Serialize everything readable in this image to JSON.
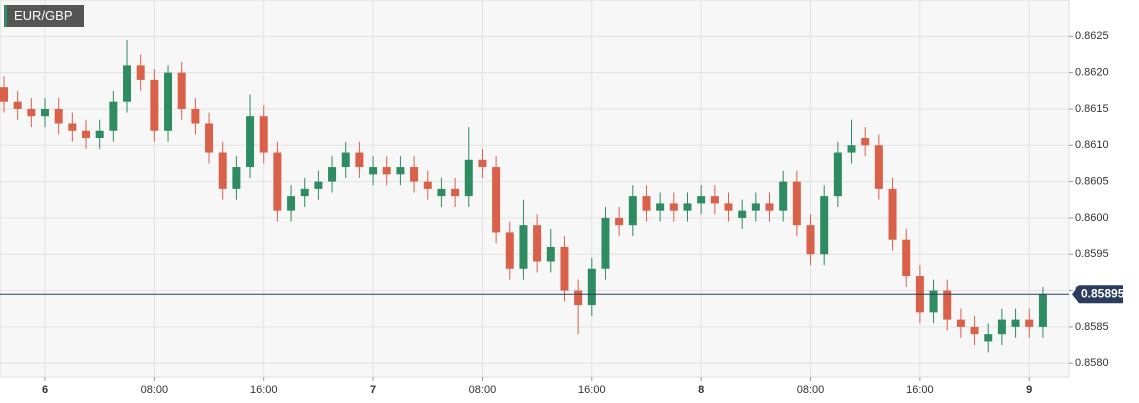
{
  "chart_data": {
    "type": "candlestick",
    "title": "EUR/GBP",
    "categories": [
      null,
      null,
      null,
      "6",
      null,
      null,
      null,
      null,
      null,
      null,
      null,
      "08:00",
      null,
      null,
      null,
      null,
      null,
      null,
      null,
      "16:00",
      null,
      null,
      null,
      null,
      null,
      null,
      null,
      "7",
      null,
      null,
      null,
      null,
      null,
      null,
      null,
      "08:00",
      null,
      null,
      null,
      null,
      null,
      null,
      null,
      "16:00",
      null,
      null,
      null,
      null,
      null,
      null,
      null,
      "8",
      null,
      null,
      null,
      null,
      null,
      null,
      null,
      "08:00",
      null,
      null,
      null,
      null,
      null,
      null,
      null,
      "16:00",
      null,
      null,
      null,
      null,
      null,
      null,
      null,
      "9",
      null
    ],
    "open": [
      0.8618,
      0.8616,
      0.8615,
      0.8614,
      0.8615,
      0.8613,
      0.8612,
      0.8611,
      0.8612,
      0.8616,
      0.8621,
      0.8619,
      0.8612,
      0.862,
      0.8615,
      0.8613,
      0.8609,
      0.8604,
      0.8607,
      0.8614,
      0.8609,
      0.8601,
      0.8603,
      0.8604,
      0.8605,
      0.8607,
      0.8609,
      0.8606,
      0.8607,
      0.8606,
      0.8607,
      0.8605,
      0.8603,
      0.8604,
      0.8603,
      0.8608,
      0.8607,
      0.8598,
      0.8593,
      0.8599,
      0.8594,
      0.8596,
      0.859,
      0.8588,
      0.8593,
      0.86,
      0.8599,
      0.8603,
      0.8601,
      0.8602,
      0.8601,
      0.8602,
      0.8603,
      0.8602,
      0.86,
      0.8601,
      0.8602,
      0.8601,
      0.8605,
      0.8599,
      0.8595,
      0.8603,
      0.8609,
      0.8611,
      0.861,
      0.8604,
      0.8597,
      0.8592,
      0.8587,
      0.859,
      0.8586,
      0.8585,
      0.8583,
      0.8584,
      0.8585,
      0.8586,
      0.8585
    ],
    "high": [
      0.86195,
      0.86175,
      0.86165,
      0.86165,
      0.86165,
      0.86145,
      0.86135,
      0.86135,
      0.86175,
      0.86245,
      0.86225,
      0.86205,
      0.8621,
      0.86215,
      0.86165,
      0.86145,
      0.86105,
      0.86085,
      0.8617,
      0.86155,
      0.86105,
      0.86045,
      0.86055,
      0.86065,
      0.86085,
      0.86105,
      0.86105,
      0.86085,
      0.86085,
      0.86085,
      0.86085,
      0.86065,
      0.86055,
      0.86055,
      0.86125,
      0.86095,
      0.86085,
      0.85995,
      0.86025,
      0.86005,
      0.85985,
      0.85975,
      0.85915,
      0.85945,
      0.86015,
      0.86015,
      0.86045,
      0.86045,
      0.86035,
      0.86035,
      0.86035,
      0.86045,
      0.86045,
      0.86035,
      0.86025,
      0.86035,
      0.86035,
      0.86065,
      0.86065,
      0.86005,
      0.86045,
      0.86105,
      0.86135,
      0.86125,
      0.86115,
      0.86055,
      0.85985,
      0.85935,
      0.85915,
      0.85915,
      0.85875,
      0.85865,
      0.85855,
      0.85875,
      0.85875,
      0.85875,
      0.85905
    ],
    "low": [
      0.86145,
      0.86135,
      0.86125,
      0.86125,
      0.86115,
      0.86105,
      0.86095,
      0.86095,
      0.86105,
      0.86145,
      0.86175,
      0.86105,
      0.86105,
      0.86135,
      0.86115,
      0.86075,
      0.86025,
      0.86025,
      0.86055,
      0.86075,
      0.85995,
      0.85995,
      0.86015,
      0.86025,
      0.86035,
      0.86055,
      0.86055,
      0.86045,
      0.86045,
      0.86045,
      0.86035,
      0.86025,
      0.86015,
      0.86015,
      0.86015,
      0.86055,
      0.85965,
      0.85915,
      0.85915,
      0.85925,
      0.85925,
      0.85885,
      0.8584,
      0.85865,
      0.85915,
      0.85975,
      0.85975,
      0.85995,
      0.85995,
      0.85995,
      0.85995,
      0.86005,
      0.86005,
      0.85995,
      0.85985,
      0.85995,
      0.85995,
      0.85995,
      0.85975,
      0.85935,
      0.85935,
      0.86015,
      0.86075,
      0.86085,
      0.86025,
      0.85955,
      0.85905,
      0.85855,
      0.85855,
      0.85845,
      0.85835,
      0.85825,
      0.85815,
      0.85825,
      0.85835,
      0.85835,
      0.85835
    ],
    "close": [
      0.8616,
      0.8615,
      0.8614,
      0.8615,
      0.8613,
      0.8612,
      0.8611,
      0.8612,
      0.8616,
      0.8621,
      0.8619,
      0.8612,
      0.862,
      0.8615,
      0.8613,
      0.8609,
      0.8604,
      0.8607,
      0.8614,
      0.8609,
      0.8601,
      0.8603,
      0.8604,
      0.8605,
      0.8607,
      0.8609,
      0.8607,
      0.8607,
      0.8606,
      0.8607,
      0.8605,
      0.8604,
      0.8604,
      0.8603,
      0.8608,
      0.8607,
      0.8598,
      0.8593,
      0.8599,
      0.8594,
      0.8596,
      0.859,
      0.8588,
      0.8593,
      0.86,
      0.8599,
      0.8603,
      0.8601,
      0.8602,
      0.8601,
      0.8602,
      0.8603,
      0.8602,
      0.8601,
      0.8601,
      0.8602,
      0.8601,
      0.8605,
      0.8599,
      0.8595,
      0.8603,
      0.8609,
      0.861,
      0.861,
      0.8604,
      0.8597,
      0.8592,
      0.8587,
      0.859,
      0.8586,
      0.8585,
      0.8584,
      0.8584,
      0.8586,
      0.8586,
      0.8585,
      0.85895
    ],
    "up_color": "#2e8b62",
    "down_color": "#d9614a",
    "last_price": 0.85895,
    "last_color": "#2b3d5f",
    "ylim": [
      0.85781,
      0.863
    ],
    "yticks": [
      {
        "value": 0.858,
        "label": "0.8580"
      },
      {
        "value": 0.8585,
        "label": "0.8585"
      },
      {
        "value": 0.859,
        "label": "0.8590"
      },
      {
        "value": 0.8595,
        "label": "0.8595"
      },
      {
        "value": 0.86,
        "label": "0.8600"
      },
      {
        "value": 0.8605,
        "label": "0.8605"
      },
      {
        "value": 0.861,
        "label": "0.8610"
      },
      {
        "value": 0.8615,
        "label": "0.8615"
      },
      {
        "value": 0.862,
        "label": "0.8620"
      },
      {
        "value": 0.8625,
        "label": "0.8625"
      }
    ],
    "grid": true
  }
}
